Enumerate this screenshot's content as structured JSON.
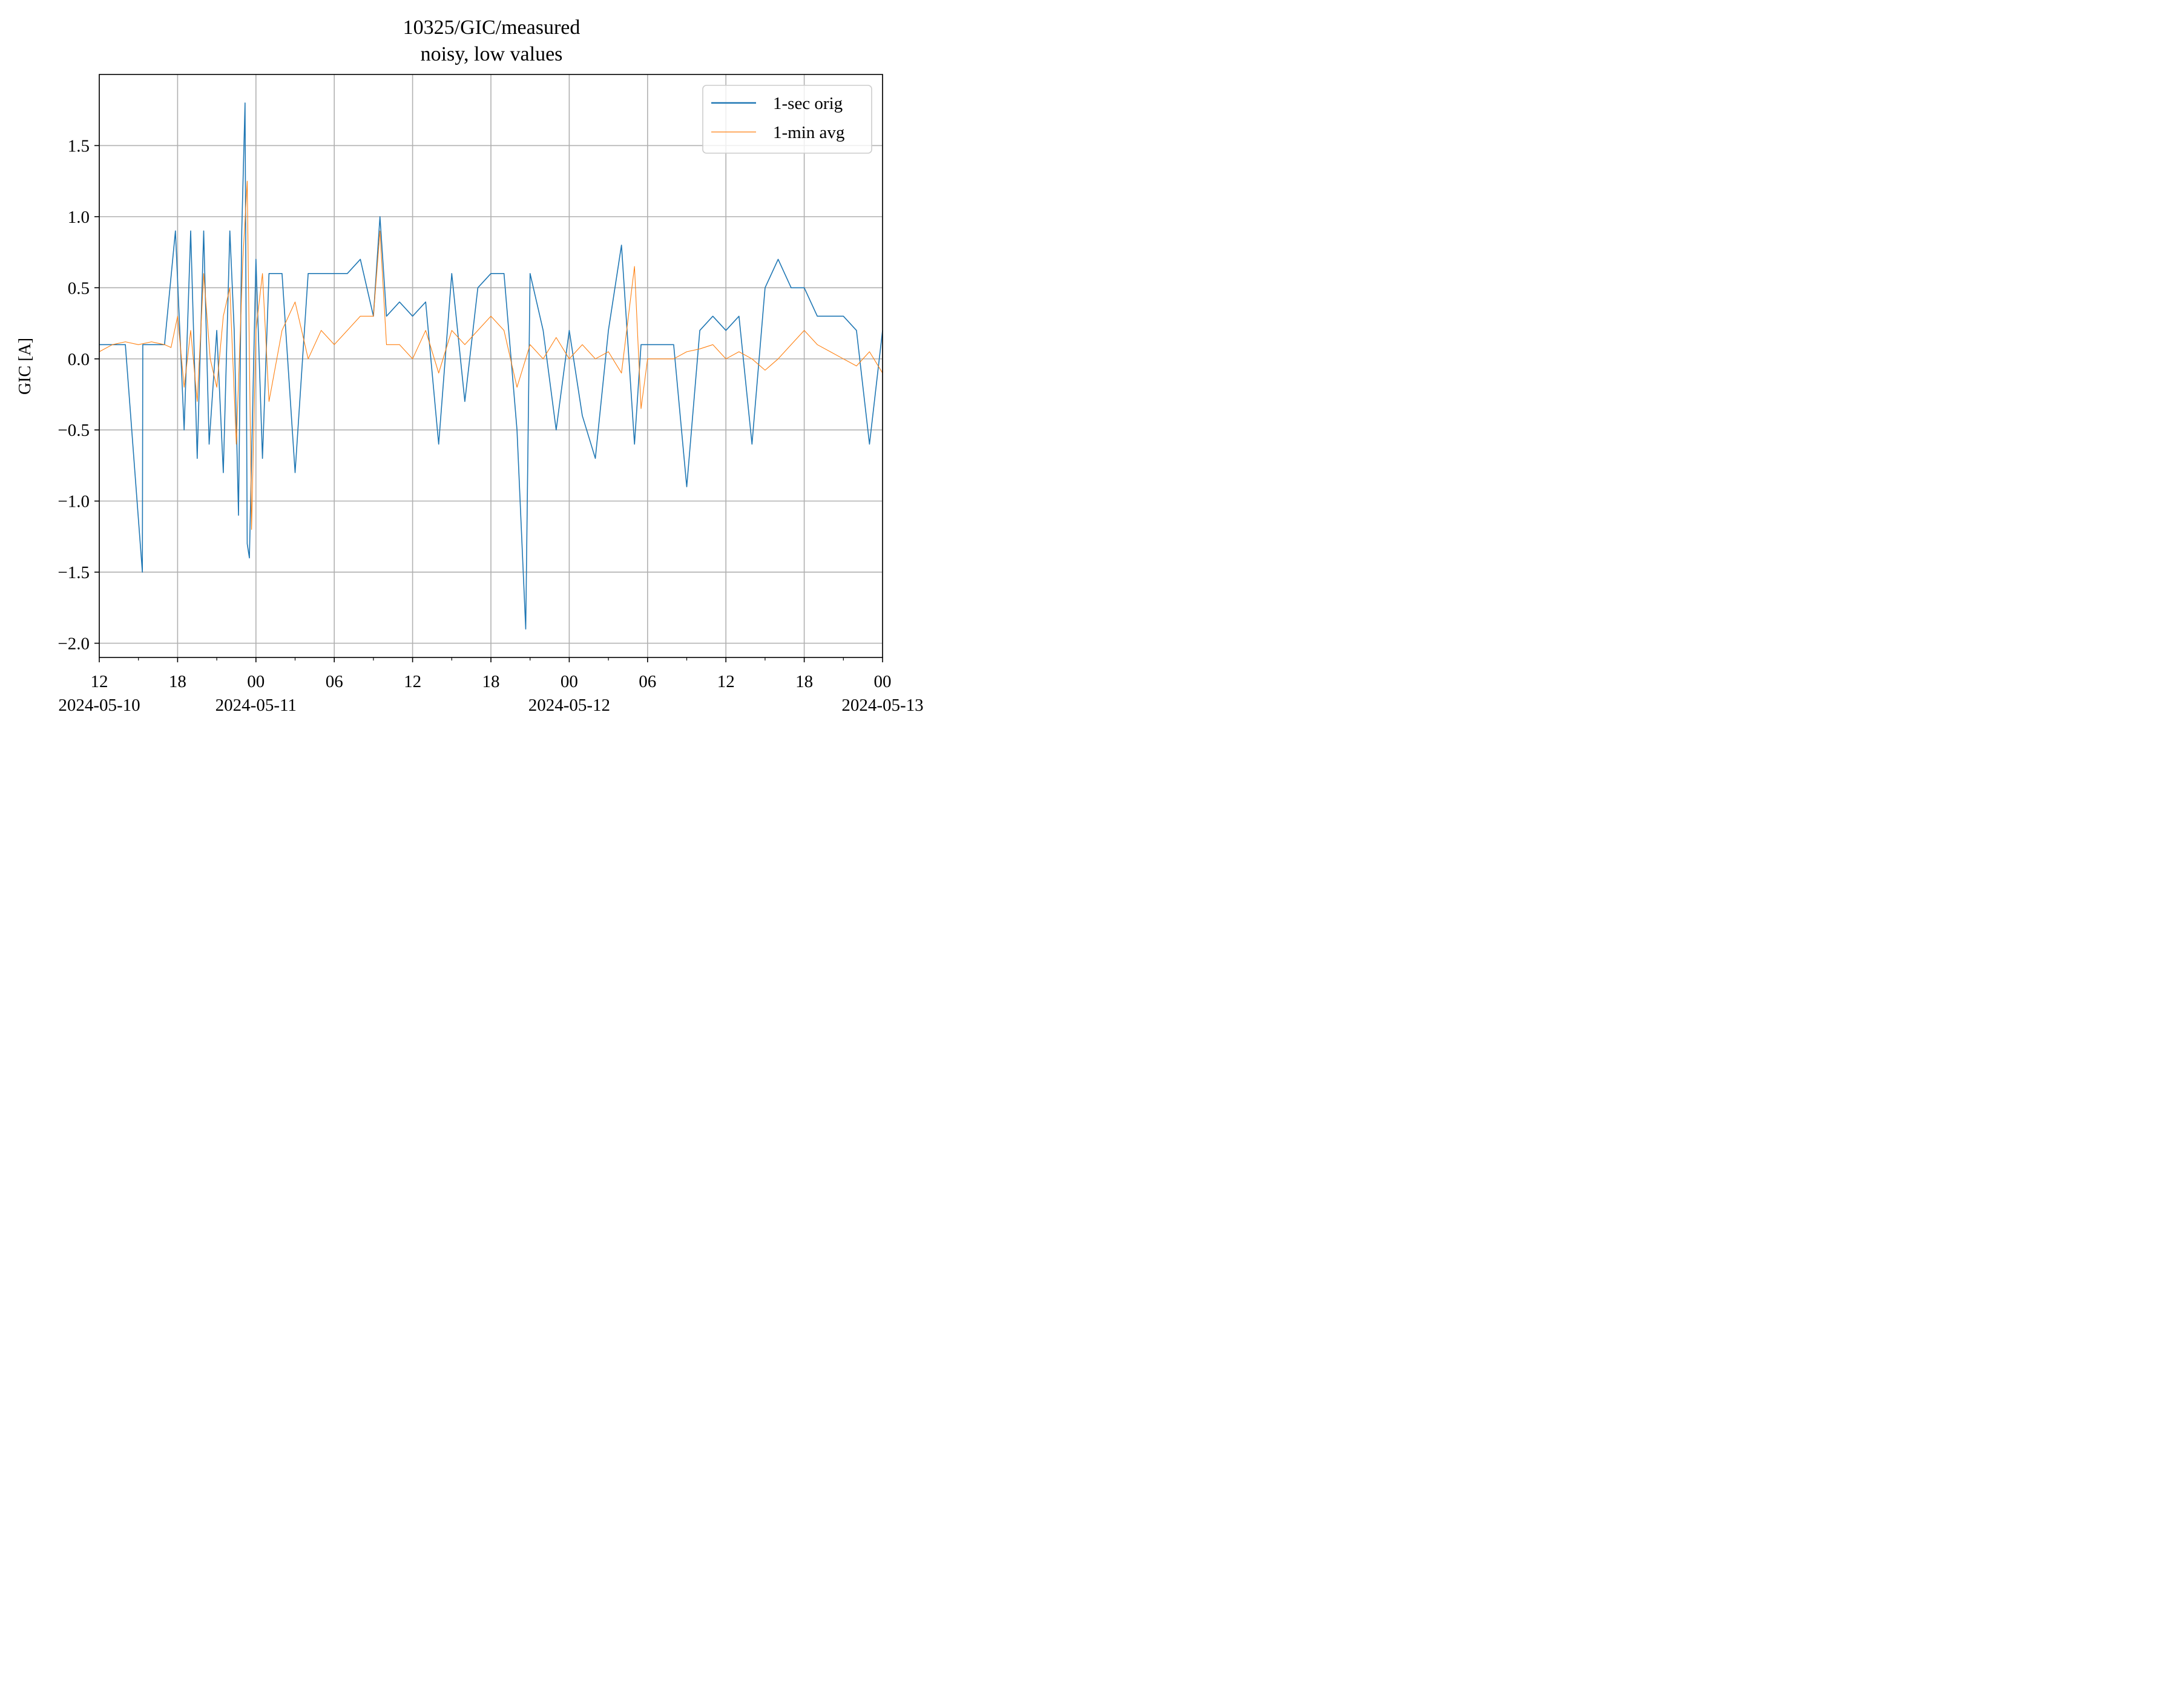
{
  "chart_data": {
    "type": "line",
    "title": "10325/GIC/measured",
    "subtitle": "noisy, low values",
    "xlabel": "",
    "ylabel": "GIC [A]",
    "xlim": [
      "2024-05-10T12:00",
      "2024-05-13T00:00"
    ],
    "ylim": [
      -2.1,
      2.0
    ],
    "grid": true,
    "legend_position": "top-right",
    "x_ticks": [
      {
        "t": "2024-05-10T12:00",
        "label": "12",
        "date": "2024-05-10"
      },
      {
        "t": "2024-05-10T18:00",
        "label": "18",
        "date": ""
      },
      {
        "t": "2024-05-11T00:00",
        "label": "00",
        "date": "2024-05-11"
      },
      {
        "t": "2024-05-11T06:00",
        "label": "06",
        "date": ""
      },
      {
        "t": "2024-05-11T12:00",
        "label": "12",
        "date": ""
      },
      {
        "t": "2024-05-11T18:00",
        "label": "18",
        "date": ""
      },
      {
        "t": "2024-05-12T00:00",
        "label": "00",
        "date": "2024-05-12"
      },
      {
        "t": "2024-05-12T06:00",
        "label": "06",
        "date": ""
      },
      {
        "t": "2024-05-12T12:00",
        "label": "12",
        "date": ""
      },
      {
        "t": "2024-05-12T18:00",
        "label": "18",
        "date": ""
      },
      {
        "t": "2024-05-13T00:00",
        "label": "00",
        "date": "2024-05-13"
      }
    ],
    "y_ticks": [
      {
        "v": 1.5,
        "label": "1.5"
      },
      {
        "v": 1.0,
        "label": "1.0"
      },
      {
        "v": 0.5,
        "label": "0.5"
      },
      {
        "v": 0.0,
        "label": "0.0"
      },
      {
        "v": -0.5,
        "label": "−0.5"
      },
      {
        "v": -1.0,
        "label": "−1.0"
      },
      {
        "v": -1.5,
        "label": "−1.5"
      },
      {
        "v": -2.0,
        "label": "−2.0"
      }
    ],
    "series": [
      {
        "name": "1-sec orig",
        "color": "#1f77b4",
        "x": [
          "2024-05-10T12:00",
          "2024-05-10T14:00",
          "2024-05-10T15:18",
          "2024-05-10T15:20",
          "2024-05-10T16:00",
          "2024-05-10T17:00",
          "2024-05-10T17:50",
          "2024-05-10T18:30",
          "2024-05-10T19:00",
          "2024-05-10T19:30",
          "2024-05-10T20:00",
          "2024-05-10T20:25",
          "2024-05-10T21:00",
          "2024-05-10T21:30",
          "2024-05-10T22:00",
          "2024-05-10T22:20",
          "2024-05-10T22:40",
          "2024-05-10T22:55",
          "2024-05-10T23:10",
          "2024-05-10T23:20",
          "2024-05-10T23:30",
          "2024-05-11T00:00",
          "2024-05-11T00:30",
          "2024-05-11T01:00",
          "2024-05-11T02:00",
          "2024-05-11T03:00",
          "2024-05-11T04:00",
          "2024-05-11T05:00",
          "2024-05-11T06:00",
          "2024-05-11T07:00",
          "2024-05-11T08:00",
          "2024-05-11T09:00",
          "2024-05-11T09:30",
          "2024-05-11T10:00",
          "2024-05-11T11:00",
          "2024-05-11T12:00",
          "2024-05-11T13:00",
          "2024-05-11T14:00",
          "2024-05-11T15:00",
          "2024-05-11T16:00",
          "2024-05-11T17:00",
          "2024-05-11T18:00",
          "2024-05-11T19:00",
          "2024-05-11T20:00",
          "2024-05-11T20:40",
          "2024-05-11T21:00",
          "2024-05-11T22:00",
          "2024-05-11T23:00",
          "2024-05-12T00:00",
          "2024-05-12T01:00",
          "2024-05-12T02:00",
          "2024-05-12T03:00",
          "2024-05-12T04:00",
          "2024-05-12T05:00",
          "2024-05-12T05:30",
          "2024-05-12T06:00",
          "2024-05-12T07:00",
          "2024-05-12T08:00",
          "2024-05-12T09:00",
          "2024-05-12T10:00",
          "2024-05-12T11:00",
          "2024-05-12T12:00",
          "2024-05-12T13:00",
          "2024-05-12T14:00",
          "2024-05-12T15:00",
          "2024-05-12T16:00",
          "2024-05-12T17:00",
          "2024-05-12T18:00",
          "2024-05-12T19:00",
          "2024-05-12T20:00",
          "2024-05-12T21:00",
          "2024-05-12T22:00",
          "2024-05-12T23:00",
          "2024-05-13T00:00"
        ],
        "y": [
          0.1,
          0.1,
          -1.5,
          0.1,
          0.1,
          0.1,
          0.9,
          -0.5,
          0.9,
          -0.7,
          0.9,
          -0.6,
          0.2,
          -0.8,
          0.9,
          0.2,
          -1.1,
          0.9,
          1.8,
          -1.3,
          -1.4,
          0.7,
          -0.7,
          0.6,
          0.6,
          -0.8,
          0.6,
          0.6,
          0.6,
          0.6,
          0.7,
          0.3,
          1.0,
          0.3,
          0.4,
          0.3,
          0.4,
          -0.6,
          0.6,
          -0.3,
          0.5,
          0.6,
          0.6,
          -0.5,
          -1.9,
          0.6,
          0.2,
          -0.5,
          0.2,
          -0.4,
          -0.7,
          0.2,
          0.8,
          -0.6,
          0.1,
          0.1,
          0.1,
          0.1,
          -0.9,
          0.2,
          0.3,
          0.2,
          0.3,
          -0.6,
          0.5,
          0.7,
          0.5,
          0.5,
          0.3,
          0.3,
          0.3,
          0.2,
          -0.6,
          0.2
        ]
      },
      {
        "name": "1-min avg",
        "color": "#ff7f0e",
        "x": [
          "2024-05-10T12:00",
          "2024-05-10T13:00",
          "2024-05-10T14:00",
          "2024-05-10T15:00",
          "2024-05-10T16:00",
          "2024-05-10T17:00",
          "2024-05-10T17:30",
          "2024-05-10T18:00",
          "2024-05-10T18:30",
          "2024-05-10T19:00",
          "2024-05-10T19:30",
          "2024-05-10T20:00",
          "2024-05-10T20:30",
          "2024-05-10T21:00",
          "2024-05-10T21:30",
          "2024-05-10T22:00",
          "2024-05-10T22:30",
          "2024-05-10T23:00",
          "2024-05-10T23:20",
          "2024-05-10T23:40",
          "2024-05-11T00:00",
          "2024-05-11T00:30",
          "2024-05-11T01:00",
          "2024-05-11T02:00",
          "2024-05-11T03:00",
          "2024-05-11T04:00",
          "2024-05-11T05:00",
          "2024-05-11T06:00",
          "2024-05-11T07:00",
          "2024-05-11T08:00",
          "2024-05-11T09:00",
          "2024-05-11T09:30",
          "2024-05-11T10:00",
          "2024-05-11T11:00",
          "2024-05-11T12:00",
          "2024-05-11T13:00",
          "2024-05-11T14:00",
          "2024-05-11T15:00",
          "2024-05-11T16:00",
          "2024-05-11T17:00",
          "2024-05-11T18:00",
          "2024-05-11T19:00",
          "2024-05-11T20:00",
          "2024-05-11T21:00",
          "2024-05-11T22:00",
          "2024-05-11T23:00",
          "2024-05-12T00:00",
          "2024-05-12T01:00",
          "2024-05-12T02:00",
          "2024-05-12T03:00",
          "2024-05-12T04:00",
          "2024-05-12T05:00",
          "2024-05-12T05:30",
          "2024-05-12T06:00",
          "2024-05-12T07:00",
          "2024-05-12T08:00",
          "2024-05-12T09:00",
          "2024-05-12T10:00",
          "2024-05-12T11:00",
          "2024-05-12T12:00",
          "2024-05-12T13:00",
          "2024-05-12T14:00",
          "2024-05-12T15:00",
          "2024-05-12T16:00",
          "2024-05-12T17:00",
          "2024-05-12T18:00",
          "2024-05-12T19:00",
          "2024-05-12T20:00",
          "2024-05-12T21:00",
          "2024-05-12T22:00",
          "2024-05-12T23:00",
          "2024-05-13T00:00"
        ],
        "y": [
          0.05,
          0.1,
          0.12,
          0.1,
          0.12,
          0.1,
          0.08,
          0.3,
          -0.2,
          0.2,
          -0.3,
          0.6,
          0.0,
          -0.2,
          0.3,
          0.5,
          -0.6,
          0.7,
          1.25,
          -1.2,
          0.2,
          0.6,
          -0.3,
          0.2,
          0.4,
          0.0,
          0.2,
          0.1,
          0.2,
          0.3,
          0.3,
          0.9,
          0.1,
          0.1,
          0.0,
          0.2,
          -0.1,
          0.2,
          0.1,
          0.2,
          0.3,
          0.2,
          -0.2,
          0.1,
          0.0,
          0.15,
          0.0,
          0.1,
          0.0,
          0.05,
          -0.1,
          0.65,
          -0.35,
          0.0,
          0.0,
          0.0,
          0.05,
          0.07,
          0.1,
          0.0,
          0.05,
          0.0,
          -0.08,
          0.0,
          0.1,
          0.2,
          0.1,
          0.05,
          0.0,
          -0.05,
          0.05,
          -0.1
        ]
      }
    ]
  }
}
